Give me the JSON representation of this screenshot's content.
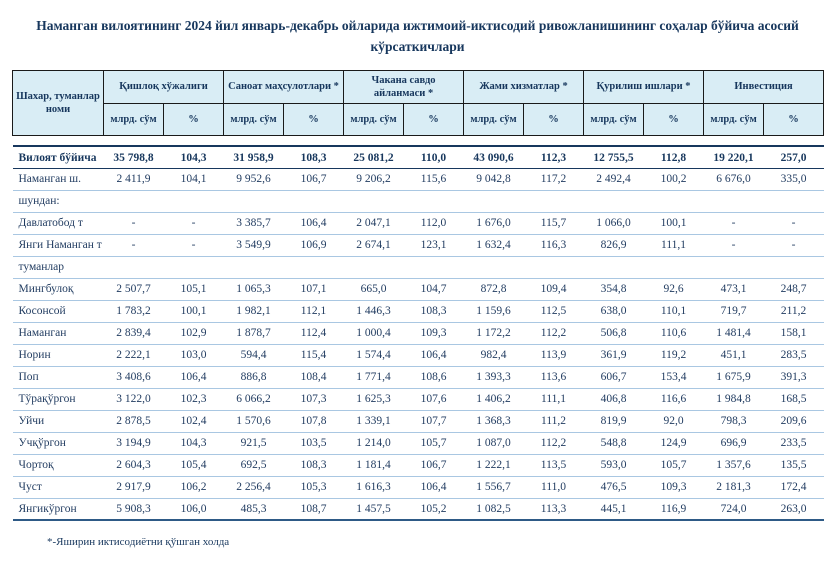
{
  "title": "Наманган вилоятининг 2024 йил январь-декабрь ойларида ижтимоий-иктисодий ривожланишининг соҳалар бўйича асосий кўрсаткичлари",
  "footnote": "*-Яширин иктисодиётни қўшган холда",
  "colors": {
    "header_background": "#d9edf5",
    "title_navy": "#17375d",
    "body_text": "#1f3a5f",
    "row_separator": "#a9c7e2",
    "strong_rule": "#2e5a86",
    "header_border": "#1a1a1a"
  },
  "table": {
    "name_header": "Шахар, туманлар номи",
    "sub_headers": {
      "amount": "млрд. сўм",
      "percent": "%"
    },
    "groups": [
      {
        "label": "Қишлоқ хўжалиги"
      },
      {
        "label": "Саноат маҳсулотлари *"
      },
      {
        "label": "Чакана савдо айланмаси *"
      },
      {
        "label": "Жами хизматлар *"
      },
      {
        "label": "Қурилиш ишлари *"
      },
      {
        "label": "Инвестиция"
      }
    ],
    "rows": [
      {
        "name": "Вилоят бўйича",
        "bold": true,
        "values": [
          "35 798,8",
          "104,3",
          "31 958,9",
          "108,3",
          "25 081,2",
          "110,0",
          "43 090,6",
          "112,3",
          "12 755,5",
          "112,8",
          "19 220,1",
          "257,0"
        ]
      },
      {
        "name": "Наманган ш.",
        "values": [
          "2 411,9",
          "104,1",
          "9 952,6",
          "106,7",
          "9 206,2",
          "115,6",
          "9 042,8",
          "117,2",
          "2 492,4",
          "100,2",
          "6 676,0",
          "335,0"
        ]
      },
      {
        "name": "шундан:",
        "section": true,
        "values": []
      },
      {
        "name": "Давлатобод т",
        "values": [
          "-",
          "-",
          "3 385,7",
          "106,4",
          "2 047,1",
          "112,0",
          "1 676,0",
          "115,7",
          "1 066,0",
          "100,1",
          "-",
          "-"
        ]
      },
      {
        "name": "Янги Наманган т",
        "values": [
          "-",
          "-",
          "3 549,9",
          "106,9",
          "2 674,1",
          "123,1",
          "1 632,4",
          "116,3",
          "826,9",
          "111,1",
          "-",
          "-"
        ]
      },
      {
        "name": "туманлар",
        "section": true,
        "values": []
      },
      {
        "name": "Мингбулоқ",
        "values": [
          "2 507,7",
          "105,1",
          "1 065,3",
          "107,1",
          "665,0",
          "104,7",
          "872,8",
          "109,4",
          "354,8",
          "92,6",
          "473,1",
          "248,7"
        ]
      },
      {
        "name": "Косонсой",
        "values": [
          "1 783,2",
          "100,1",
          "1 982,1",
          "112,1",
          "1 446,3",
          "108,3",
          "1 159,6",
          "112,5",
          "638,0",
          "110,1",
          "719,7",
          "211,2"
        ]
      },
      {
        "name": "Наманган",
        "values": [
          "2 839,4",
          "102,9",
          "1 878,7",
          "112,4",
          "1 000,4",
          "109,3",
          "1 172,2",
          "112,2",
          "506,8",
          "110,6",
          "1 481,4",
          "158,1"
        ]
      },
      {
        "name": "Норин",
        "values": [
          "2 222,1",
          "103,0",
          "594,4",
          "115,4",
          "1 574,4",
          "106,4",
          "982,4",
          "113,9",
          "361,9",
          "119,2",
          "451,1",
          "283,5"
        ]
      },
      {
        "name": "Поп",
        "values": [
          "3 408,6",
          "106,4",
          "886,8",
          "108,4",
          "1 771,4",
          "108,6",
          "1 393,3",
          "113,6",
          "606,7",
          "153,4",
          "1 675,9",
          "391,3"
        ]
      },
      {
        "name": "Тўрақўргон",
        "values": [
          "3 122,0",
          "102,3",
          "6 066,2",
          "107,3",
          "1 625,3",
          "107,6",
          "1 406,2",
          "111,1",
          "406,8",
          "116,6",
          "1 984,8",
          "168,5"
        ]
      },
      {
        "name": "Уйчи",
        "values": [
          "2 878,5",
          "102,4",
          "1 570,6",
          "107,8",
          "1 339,1",
          "107,7",
          "1 368,3",
          "111,2",
          "819,9",
          "92,0",
          "798,3",
          "209,6"
        ]
      },
      {
        "name": "Учқўргон",
        "values": [
          "3 194,9",
          "104,3",
          "921,5",
          "103,5",
          "1 214,0",
          "105,7",
          "1 087,0",
          "112,2",
          "548,8",
          "124,9",
          "696,9",
          "233,5"
        ]
      },
      {
        "name": "Чортоқ",
        "values": [
          "2 604,3",
          "105,4",
          "692,5",
          "108,3",
          "1 181,4",
          "106,7",
          "1 222,1",
          "113,5",
          "593,0",
          "105,7",
          "1 357,6",
          "135,5"
        ]
      },
      {
        "name": "Чуст",
        "values": [
          "2 917,9",
          "106,2",
          "2 256,4",
          "105,3",
          "1 616,3",
          "106,4",
          "1 556,7",
          "111,0",
          "476,5",
          "109,3",
          "2 181,3",
          "172,4"
        ]
      },
      {
        "name": "Янгикўргон",
        "values": [
          "5 908,3",
          "106,0",
          "485,3",
          "108,7",
          "1 457,5",
          "105,2",
          "1 082,5",
          "113,3",
          "445,1",
          "116,9",
          "724,0",
          "263,0"
        ]
      }
    ]
  }
}
